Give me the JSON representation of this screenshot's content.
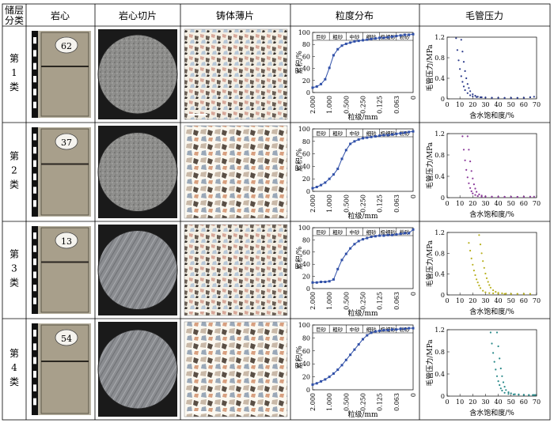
{
  "header": {
    "class_col": [
      "储层",
      "分类"
    ],
    "core": "岩心",
    "thin_section": "岩心切片",
    "cast_thin": "铸体薄片",
    "grain_dist": "粒度分布",
    "cap_pressure": "毛管压力"
  },
  "rows": [
    {
      "class_label": [
        "第",
        "1",
        "类"
      ],
      "sample": "62"
    },
    {
      "class_label": [
        "第",
        "2",
        "类"
      ],
      "sample": "37"
    },
    {
      "class_label": [
        "第",
        "3",
        "类"
      ],
      "sample": "13"
    },
    {
      "class_label": [
        "第",
        "4",
        "类"
      ],
      "sample": "54"
    }
  ],
  "grain_axes": {
    "ylabel": "累积/%",
    "xlabel": "粒级/mm",
    "yticks": [
      "0",
      "20",
      "40",
      "60",
      "80",
      "100"
    ],
    "xticks": [
      "2.000",
      "1.000",
      "0.500",
      "0.250",
      "0.125",
      "0.063",
      "0"
    ],
    "bands": [
      "巨砂",
      "粗砂",
      "中砂",
      "细砂",
      "极细砂",
      "粉砂"
    ]
  },
  "cap_axes": {
    "ylabel": "毛管压力/MPa",
    "xlabel": "含水饱和度/%",
    "yticks": [
      "0",
      "0.4",
      "0.8",
      "1.2"
    ],
    "xticks": [
      "0",
      "10",
      "20",
      "30",
      "40",
      "50",
      "60",
      "70"
    ]
  },
  "chart_data": [
    {
      "type": "line",
      "ylabel": "累积/%",
      "xlabel": "粒级/mm",
      "ylim": [
        0,
        100
      ],
      "x_categories": [
        "2.000",
        "1.000",
        "0.500",
        "0.250",
        "0.125",
        "0.063",
        "0"
      ],
      "series": [
        {
          "x": [
            0,
            0.25,
            0.5,
            0.75,
            1,
            1.25,
            1.5,
            1.75,
            2,
            2.25,
            2.5,
            2.75,
            3,
            3.25,
            3.5,
            3.75,
            4,
            4.25,
            4.5,
            4.75,
            5,
            5.25,
            5.5,
            5.75,
            6
          ],
          "values": [
            8,
            10,
            14,
            22,
            41,
            62,
            72,
            78,
            81,
            83,
            85,
            86,
            87,
            88,
            89,
            90,
            91,
            91,
            92,
            93,
            94,
            95,
            96,
            96,
            97
          ]
        }
      ]
    },
    {
      "type": "line",
      "ylabel": "累积/%",
      "xlabel": "粒级/mm",
      "ylim": [
        0,
        100
      ],
      "x_categories": [
        "2.000",
        "1.000",
        "0.500",
        "0.250",
        "0.125",
        "0.063",
        "0"
      ],
      "series": [
        {
          "x": [
            0,
            0.25,
            0.5,
            0.75,
            1,
            1.25,
            1.5,
            1.75,
            2,
            2.25,
            2.5,
            2.75,
            3,
            3.25,
            3.5,
            3.75,
            4,
            4.25,
            4.5,
            4.75,
            5,
            5.25,
            5.5,
            5.75,
            6
          ],
          "values": [
            5,
            7,
            10,
            14,
            20,
            27,
            36,
            52,
            66,
            76,
            80,
            83,
            85,
            86,
            87,
            88,
            89,
            90,
            90,
            91,
            92,
            93,
            94,
            95,
            96
          ]
        }
      ]
    },
    {
      "type": "line",
      "ylabel": "累积/%",
      "xlabel": "粒级/mm",
      "ylim": [
        0,
        100
      ],
      "x_categories": [
        "2.000",
        "1.000",
        "0.500",
        "0.250",
        "0.125",
        "0.063",
        "0"
      ],
      "series": [
        {
          "x": [
            0,
            0.25,
            0.5,
            0.75,
            1,
            1.25,
            1.5,
            1.75,
            2,
            2.25,
            2.5,
            2.75,
            3,
            3.25,
            3.5,
            3.75,
            4,
            4.25,
            4.5,
            4.75,
            5,
            5.25,
            5.5,
            5.75,
            6
          ],
          "values": [
            10,
            10,
            11,
            11,
            12,
            15,
            32,
            47,
            57,
            66,
            73,
            78,
            81,
            83,
            85,
            86,
            87,
            87,
            88,
            88,
            89,
            90,
            91,
            91,
            97
          ]
        }
      ]
    },
    {
      "type": "line",
      "ylabel": "累积/%",
      "xlabel": "粒级/mm",
      "ylim": [
        0,
        100
      ],
      "x_categories": [
        "2.000",
        "1.000",
        "0.500",
        "0.250",
        "0.125",
        "0.063",
        "0"
      ],
      "series": [
        {
          "x": [
            0,
            0.25,
            0.5,
            0.75,
            1,
            1.25,
            1.5,
            1.75,
            2,
            2.25,
            2.5,
            2.75,
            3,
            3.25,
            3.5,
            3.75,
            4,
            4.25,
            4.5,
            4.75,
            5,
            5.25,
            5.5,
            5.75,
            6
          ],
          "values": [
            8,
            10,
            13,
            16,
            20,
            25,
            31,
            38,
            46,
            54,
            62,
            70,
            78,
            84,
            88,
            90,
            91,
            92,
            92,
            93,
            93,
            94,
            94,
            95,
            95
          ]
        }
      ]
    },
    {
      "type": "scatter",
      "ylabel": "毛管压力/MPa",
      "xlabel": "含水饱和度/%",
      "xlim": [
        0,
        70
      ],
      "ylim": [
        0,
        1.2
      ],
      "color": "#2a3a8a",
      "series": [
        {
          "x": [
            7,
            8,
            9,
            10,
            11,
            12,
            13,
            14,
            16,
            18,
            20,
            23,
            26,
            30,
            35,
            40,
            45,
            50,
            55,
            60,
            65,
            68
          ],
          "values": [
            1.18,
            0.95,
            0.75,
            0.58,
            0.44,
            0.33,
            0.24,
            0.17,
            0.11,
            0.07,
            0.05,
            0.035,
            0.03,
            0.025,
            0.022,
            0.02,
            0.02,
            0.02,
            0.02,
            0.02,
            0.03,
            0.04
          ]
        },
        {
          "x": [
            11,
            12,
            13,
            14,
            15,
            16,
            17,
            18,
            20,
            22,
            24,
            27,
            30,
            35,
            40,
            45,
            50,
            55,
            60,
            65
          ],
          "values": [
            1.15,
            0.92,
            0.72,
            0.54,
            0.4,
            0.29,
            0.21,
            0.15,
            0.09,
            0.06,
            0.04,
            0.03,
            0.025,
            0.02,
            0.018,
            0.015,
            0.015,
            0.016,
            0.02,
            0.03
          ]
        }
      ]
    },
    {
      "type": "scatter",
      "ylabel": "毛管压力/MPa",
      "xlabel": "含水饱和度/%",
      "xlim": [
        0,
        70
      ],
      "ylim": [
        0,
        1.2
      ],
      "color": "#8a3a9a",
      "series": [
        {
          "x": [
            12,
            13,
            14,
            15,
            16,
            17,
            18,
            19,
            20,
            22,
            24,
            27,
            30,
            35,
            40,
            45,
            50,
            55,
            60,
            65,
            68
          ],
          "values": [
            1.15,
            0.9,
            0.7,
            0.52,
            0.38,
            0.27,
            0.18,
            0.12,
            0.08,
            0.05,
            0.03,
            0.02,
            0.02,
            0.018,
            0.016,
            0.015,
            0.015,
            0.015,
            0.016,
            0.02,
            0.02
          ]
        },
        {
          "x": [
            16,
            17,
            18,
            19,
            20,
            21,
            22,
            23,
            25,
            27,
            30,
            35,
            40,
            45,
            50,
            55,
            60
          ],
          "values": [
            1.15,
            0.9,
            0.68,
            0.5,
            0.36,
            0.25,
            0.17,
            0.11,
            0.06,
            0.04,
            0.025,
            0.02,
            0.018,
            0.016,
            0.015,
            0.015,
            0.02
          ]
        }
      ]
    },
    {
      "type": "scatter",
      "ylabel": "毛管压力/MPa",
      "xlabel": "含水饱和度/%",
      "xlim": [
        0,
        70
      ],
      "ylim": [
        0,
        1.2
      ],
      "color": "#b8b020",
      "series": [
        {
          "x": [
            17,
            18,
            19,
            20,
            21,
            22,
            23,
            24,
            25,
            26,
            28,
            30,
            33,
            36,
            40,
            45,
            50,
            55,
            60,
            65
          ],
          "values": [
            1.0,
            0.85,
            0.7,
            0.58,
            0.47,
            0.38,
            0.3,
            0.24,
            0.18,
            0.13,
            0.08,
            0.05,
            0.035,
            0.03,
            0.025,
            0.02,
            0.02,
            0.02,
            0.02,
            0.02
          ]
        },
        {
          "x": [
            25,
            26,
            27,
            28,
            29,
            30,
            31,
            32,
            33,
            34,
            36,
            38,
            40,
            43,
            46,
            50,
            55,
            60,
            65
          ],
          "values": [
            1.15,
            0.97,
            0.8,
            0.65,
            0.52,
            0.41,
            0.32,
            0.25,
            0.19,
            0.14,
            0.09,
            0.06,
            0.04,
            0.03,
            0.025,
            0.02,
            0.02,
            0.02,
            0.02
          ]
        }
      ]
    },
    {
      "type": "scatter",
      "ylabel": "毛管压力/MPa",
      "xlabel": "含水饱和度/%",
      "xlim": [
        0,
        70
      ],
      "ylim": [
        0,
        1.2
      ],
      "color": "#2a8a8a",
      "series": [
        {
          "x": [
            34,
            35,
            36,
            37,
            38,
            39,
            40,
            41,
            42,
            43,
            45,
            48,
            52,
            56,
            60,
            64,
            67,
            69
          ],
          "values": [
            1.15,
            0.95,
            0.78,
            0.62,
            0.48,
            0.36,
            0.27,
            0.2,
            0.14,
            0.1,
            0.06,
            0.04,
            0.03,
            0.025,
            0.02,
            0.02,
            0.02,
            0.02
          ]
        },
        {
          "x": [
            39,
            40,
            41,
            42,
            43,
            44,
            45,
            46,
            48,
            50,
            53,
            56,
            60,
            64,
            68
          ],
          "values": [
            1.15,
            0.9,
            0.68,
            0.5,
            0.36,
            0.25,
            0.17,
            0.11,
            0.07,
            0.05,
            0.035,
            0.03,
            0.025,
            0.02,
            0.02
          ]
        }
      ]
    }
  ],
  "colors": {
    "grain_line": "#3050a8",
    "core_bg": "#b9b3a2",
    "slice_bg": "#8a8a88"
  }
}
